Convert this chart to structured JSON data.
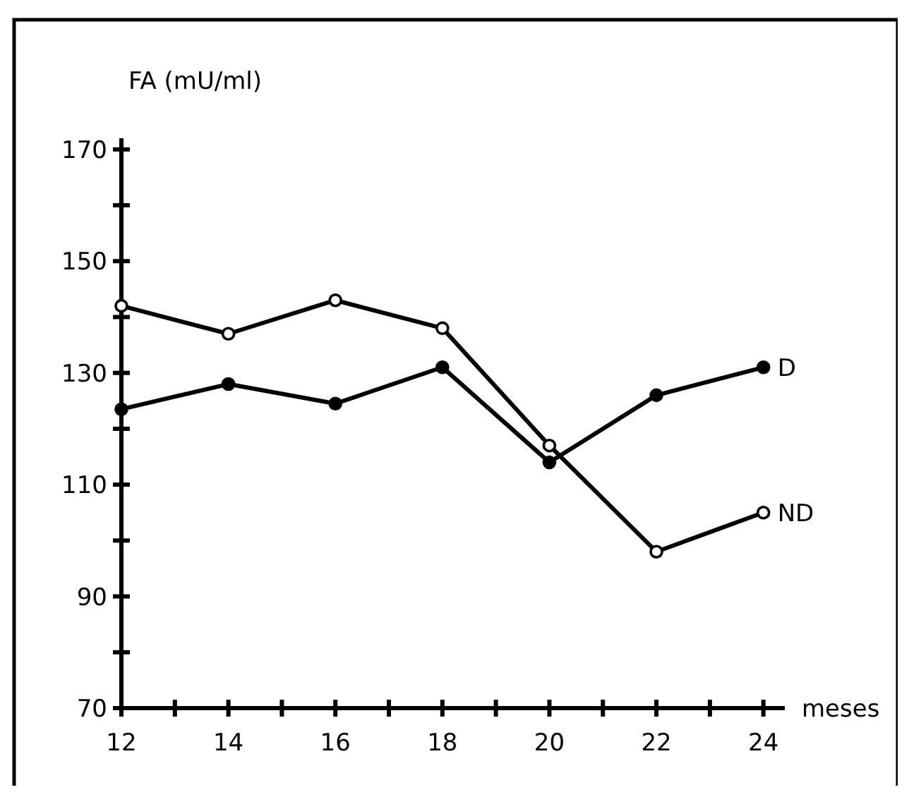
{
  "chart_data": {
    "type": "line",
    "ylabel": "FA (mU/ml)",
    "xlabel": "meses",
    "x": [
      12,
      14,
      16,
      18,
      20,
      22,
      24
    ],
    "xlim": [
      12,
      24.4
    ],
    "xticks": [
      12,
      {
        "value": 13,
        "label": null
      },
      14,
      {
        "value": 15,
        "label": null
      },
      16,
      {
        "value": 17,
        "label": null
      },
      18,
      {
        "value": 19,
        "label": null
      },
      20,
      {
        "value": 21,
        "label": null
      },
      22,
      {
        "value": 23,
        "label": null
      },
      24
    ],
    "ylim": [
      70,
      172
    ],
    "yticks": [
      70,
      {
        "value": 80,
        "label": null
      },
      90,
      {
        "value": 100,
        "label": null
      },
      110,
      {
        "value": 120,
        "label": null
      },
      130,
      {
        "value": 140,
        "label": null
      },
      150,
      {
        "value": 160,
        "label": null
      },
      170
    ],
    "marker": "circle",
    "line_style": "solid",
    "grid": false,
    "series": [
      {
        "name": "ND",
        "color": "#000000",
        "values": [
          142,
          137,
          143,
          138,
          117,
          98,
          105
        ]
      },
      {
        "name": "D",
        "color": "#000000",
        "values": [
          123.5,
          128,
          124.5,
          131,
          114,
          126,
          131
        ]
      }
    ]
  }
}
